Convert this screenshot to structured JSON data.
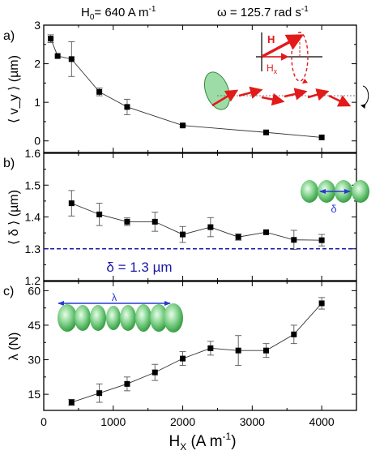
{
  "figure_title": {
    "h0_label": "H",
    "h0_sub": "0",
    "h0_rest": "= 640 A m",
    "h0_exp": "-1",
    "omega_label": "ω = 125.7 rad s",
    "omega_exp": "-1"
  },
  "shared_xaxis": {
    "label_main": "H",
    "label_sub": "X",
    "label_unit": " (A m",
    "label_exp": "-1",
    "label_close": ")",
    "ticks": [
      "0",
      "1000",
      "2000",
      "3000",
      "4000"
    ]
  },
  "colors": {
    "data": "#000000",
    "reference_line": "#1a1aaa",
    "reference_text": "#1a1aaa",
    "field_arrow": "#e31a1a",
    "particle_fill": "#4fbf5a",
    "particle_edge": "#2f8a3a",
    "annotation_arrow": "#2a3ad0"
  },
  "chart_data": [
    {
      "panel": "a)",
      "type": "line",
      "ylabel": "⟨ v_y ⟩ (µm)",
      "xlim": [
        0,
        4500
      ],
      "ylim": [
        -0.3,
        3.0
      ],
      "yticks": [
        "0",
        "1",
        "2",
        "3"
      ],
      "x": [
        100,
        200,
        400,
        800,
        1200,
        2000,
        3200,
        4000
      ],
      "y": [
        2.65,
        2.2,
        2.12,
        1.27,
        0.88,
        0.4,
        0.22,
        0.09
      ],
      "yerr": [
        0.1,
        0,
        0.45,
        0.1,
        0.2,
        0.03,
        0,
        0
      ],
      "inset_labels": {
        "h": "H",
        "hx": "H",
        "hx_sub": "x"
      }
    },
    {
      "panel": "b)",
      "type": "line",
      "ylabel": "⟨ δ ⟩ (µm)",
      "xlim": [
        0,
        4500
      ],
      "ylim": [
        1.2,
        1.6
      ],
      "yticks": [
        "1.2",
        "1.3",
        "1.4",
        "1.5",
        "1.6"
      ],
      "x": [
        400,
        800,
        1200,
        1600,
        2000,
        2400,
        2800,
        3200,
        3600,
        4000
      ],
      "y": [
        1.443,
        1.408,
        1.385,
        1.385,
        1.345,
        1.368,
        1.337,
        1.352,
        1.328,
        1.327
      ],
      "yerr": [
        0.04,
        0.035,
        0.012,
        0.03,
        0.025,
        0.03,
        0.01,
        0,
        0.03,
        0.018
      ],
      "reference_line": {
        "y": 1.3,
        "label": "δ = 1.3 µm"
      },
      "inset_label": "δ"
    },
    {
      "panel": "c)",
      "type": "line",
      "ylabel": "λ (N)",
      "xlim": [
        0,
        4500
      ],
      "ylim": [
        8,
        64
      ],
      "yticks": [
        "15",
        "30",
        "45",
        "60"
      ],
      "x": [
        400,
        800,
        1200,
        1600,
        2000,
        2400,
        2800,
        3200,
        3600,
        4000
      ],
      "y": [
        11.5,
        15.5,
        19.5,
        24.5,
        30.5,
        35,
        34,
        34,
        41,
        54.5
      ],
      "yerr": [
        1.3,
        4,
        3,
        3.5,
        3,
        3,
        6.5,
        3,
        4,
        2.5
      ],
      "inset_label": "λ"
    }
  ]
}
